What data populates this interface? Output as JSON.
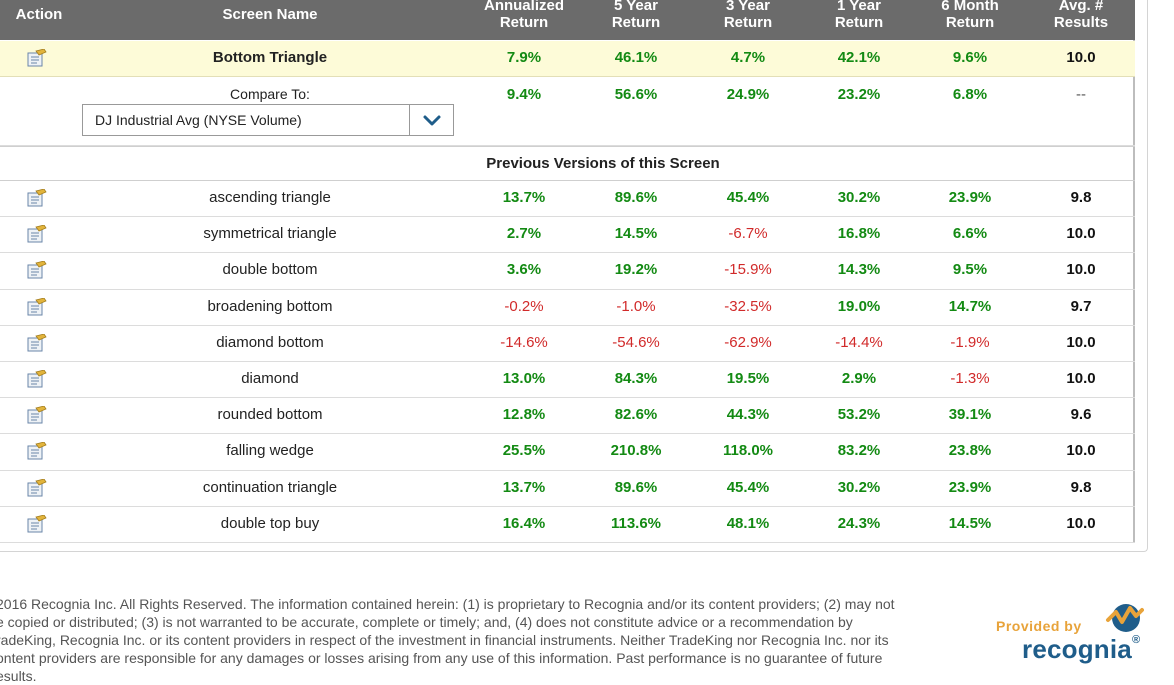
{
  "header": {
    "action": "Action",
    "screen_name": "Screen Name",
    "annualized": [
      "Annualized",
      "Return"
    ],
    "five_year": [
      "5 Year",
      "Return"
    ],
    "three_year": [
      "3 Year",
      "Return"
    ],
    "one_year": [
      "1 Year",
      "Return"
    ],
    "six_month": [
      "6 Month",
      "Return"
    ],
    "avg_results": [
      "Avg. #",
      "Results"
    ]
  },
  "current_screen": {
    "name": "Bottom Triangle",
    "annualized": "7.9%",
    "five_year": "46.1%",
    "three_year": "4.7%",
    "one_year": "42.1%",
    "six_month": "9.6%",
    "avg": "10.0"
  },
  "compare": {
    "label": "Compare To:",
    "selected": "DJ Industrial Avg (NYSE Volume)",
    "annualized": "9.4%",
    "five_year": "56.6%",
    "three_year": "24.9%",
    "one_year": "23.2%",
    "six_month": "6.8%",
    "avg": "--"
  },
  "section_title": "Previous Versions of this Screen",
  "rows": [
    {
      "name": "ascending triangle",
      "annualized": "13.7%",
      "five_year": "89.6%",
      "three_year": "45.4%",
      "one_year": "30.2%",
      "six_month": "23.9%",
      "avg": "9.8"
    },
    {
      "name": "symmetrical triangle",
      "annualized": "2.7%",
      "five_year": "14.5%",
      "three_year": "-6.7%",
      "one_year": "16.8%",
      "six_month": "6.6%",
      "avg": "10.0"
    },
    {
      "name": "double bottom",
      "annualized": "3.6%",
      "five_year": "19.2%",
      "three_year": "-15.9%",
      "one_year": "14.3%",
      "six_month": "9.5%",
      "avg": "10.0"
    },
    {
      "name": "broadening bottom",
      "annualized": "-0.2%",
      "five_year": "-1.0%",
      "three_year": "-32.5%",
      "one_year": "19.0%",
      "six_month": "14.7%",
      "avg": "9.7"
    },
    {
      "name": "diamond bottom",
      "annualized": "-14.6%",
      "five_year": "-54.6%",
      "three_year": "-62.9%",
      "one_year": "-14.4%",
      "six_month": "-1.9%",
      "avg": "10.0"
    },
    {
      "name": "diamond",
      "annualized": "13.0%",
      "five_year": "84.3%",
      "three_year": "19.5%",
      "one_year": "2.9%",
      "six_month": "-1.3%",
      "avg": "10.0"
    },
    {
      "name": "rounded bottom",
      "annualized": "12.8%",
      "five_year": "82.6%",
      "three_year": "44.3%",
      "one_year": "53.2%",
      "six_month": "39.1%",
      "avg": "9.6"
    },
    {
      "name": "falling wedge",
      "annualized": "25.5%",
      "five_year": "210.8%",
      "three_year": "118.0%",
      "one_year": "83.2%",
      "six_month": "23.8%",
      "avg": "10.0"
    },
    {
      "name": "continuation triangle",
      "annualized": "13.7%",
      "five_year": "89.6%",
      "three_year": "45.4%",
      "one_year": "30.2%",
      "six_month": "23.9%",
      "avg": "9.8"
    },
    {
      "name": "double top buy",
      "annualized": "16.4%",
      "five_year": "113.6%",
      "three_year": "48.1%",
      "one_year": "24.3%",
      "six_month": "14.5%",
      "avg": "10.0"
    }
  ],
  "footer": {
    "lines": [
      "2016 Recognia Inc. All Rights Reserved. The information contained herein: (1) is proprietary to Recognia and/or its content providers; (2) may not",
      "e copied or distributed; (3) is not warranted to be accurate, complete or timely; and, (4) does not constitute advice or a recommendation by",
      "radeKing, Recognia Inc. or its content providers in respect of the investment in financial instruments. Neither TradeKing nor Recognia Inc. nor its",
      "ontent providers are responsible for any damages or losses arising from any use of this information. Past performance is no guarantee of future",
      "esults."
    ]
  },
  "logo": {
    "provided_by": "Provided by",
    "brand": "recognia",
    "trademark": "®"
  },
  "colors": {
    "header_bg": "#6b6b6b",
    "highlight_row": "#fdfbd8",
    "positive": "#138a13",
    "negative": "#d12a2a",
    "brand_blue": "#1f5d8a",
    "brand_orange": "#e8a33a"
  }
}
